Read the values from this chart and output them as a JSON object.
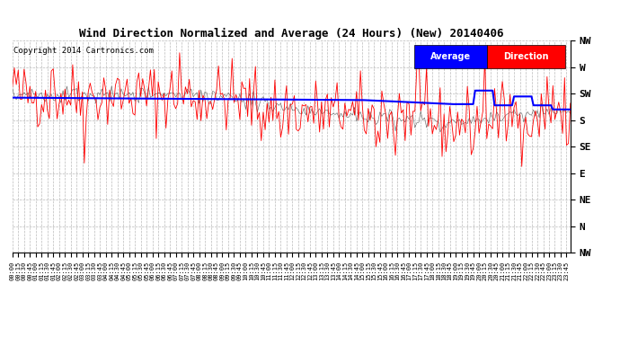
{
  "title": "Wind Direction Normalized and Average (24 Hours) (New) 20140406",
  "copyright": "Copyright 2014 Cartronics.com",
  "background_color": "#ffffff",
  "plot_bg_color": "#ffffff",
  "ytick_labels": [
    "NW",
    "W",
    "SW",
    "S",
    "SE",
    "E",
    "NE",
    "N",
    "NW"
  ],
  "ytick_values": [
    315,
    270,
    225,
    180,
    135,
    90,
    45,
    0,
    -45
  ],
  "ylim": [
    -45,
    315
  ],
  "legend_labels": [
    "Average",
    "Direction"
  ],
  "legend_colors": [
    "#0000ff",
    "#ff0000"
  ],
  "grid_color": "#aaaaaa",
  "red_line_color": "#ff0000",
  "blue_line_color": "#0000ff",
  "dark_line_color": "#333333",
  "n_points": 288,
  "figsize": [
    6.9,
    3.75
  ],
  "dpi": 100
}
